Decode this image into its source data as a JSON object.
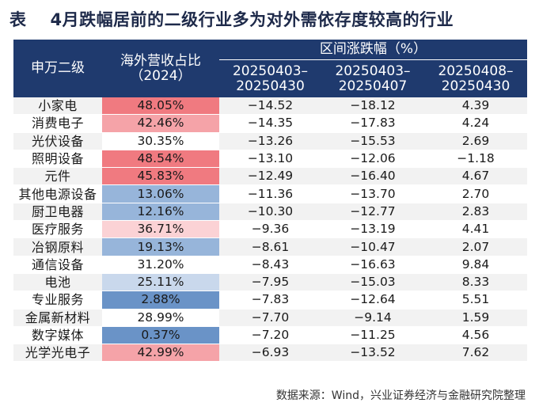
{
  "title": {
    "label": "表",
    "text": "4月跌幅居前的二级行业多为对外需依存度较高的行业"
  },
  "header": {
    "industry": "申万二级",
    "revenue_line1": "海外营收占比",
    "revenue_line2": "（2024）",
    "range_group": "区间涨跌幅（%）",
    "periods": [
      {
        "line1": "20250403–",
        "line2": "20250430"
      },
      {
        "line1": "20250403–",
        "line2": "20250407"
      },
      {
        "line1": "20250408–",
        "line2": "20250430"
      }
    ]
  },
  "rows": [
    {
      "industry": "小家电",
      "revenue": "48.05%",
      "p1": "−14.52",
      "p2": "−18.12",
      "p3": "4.39"
    },
    {
      "industry": "消费电子",
      "revenue": "42.46%",
      "p1": "−14.35",
      "p2": "−17.83",
      "p3": "4.24"
    },
    {
      "industry": "光伏设备",
      "revenue": "30.35%",
      "p1": "−13.26",
      "p2": "−15.53",
      "p3": "2.69"
    },
    {
      "industry": "照明设备",
      "revenue": "48.54%",
      "p1": "−13.10",
      "p2": "−12.06",
      "p3": "−1.18"
    },
    {
      "industry": "元件",
      "revenue": "45.83%",
      "p1": "−12.49",
      "p2": "−16.40",
      "p3": "4.67"
    },
    {
      "industry": "其他电源设备",
      "revenue": "13.06%",
      "p1": "−11.36",
      "p2": "−13.70",
      "p3": "2.70"
    },
    {
      "industry": "厨卫电器",
      "revenue": "12.16%",
      "p1": "−10.30",
      "p2": "−12.77",
      "p3": "2.83"
    },
    {
      "industry": "医疗服务",
      "revenue": "36.71%",
      "p1": "−9.36",
      "p2": "−13.19",
      "p3": "4.41"
    },
    {
      "industry": "冶钢原料",
      "revenue": "19.13%",
      "p1": "−8.61",
      "p2": "−10.47",
      "p3": "2.07"
    },
    {
      "industry": "通信设备",
      "revenue": "31.20%",
      "p1": "−8.43",
      "p2": "−16.63",
      "p3": "9.84"
    },
    {
      "industry": "电池",
      "revenue": "25.11%",
      "p1": "−7.95",
      "p2": "−15.03",
      "p3": "8.33"
    },
    {
      "industry": "专业服务",
      "revenue": "2.88%",
      "p1": "−7.83",
      "p2": "−12.64",
      "p3": "5.51"
    },
    {
      "industry": "金属新材料",
      "revenue": "28.99%",
      "p1": "−7.70",
      "p2": "−9.14",
      "p3": "1.59"
    },
    {
      "industry": "数字媒体",
      "revenue": "0.37%",
      "p1": "−7.20",
      "p2": "−11.25",
      "p3": "4.56"
    },
    {
      "industry": "光学光电子",
      "revenue": "42.99%",
      "p1": "−6.93",
      "p2": "−13.52",
      "p3": "7.62"
    }
  ],
  "heat_colors": {
    "red_strong": "#f07a80",
    "red_mid": "#f5a3a8",
    "red_light": "#fbd2d5",
    "neutral": "#ffffff",
    "blue_light": "#c9d8ec",
    "blue_mid": "#97b5da",
    "blue_strong": "#6a93c7"
  },
  "source": "数据来源：Wind，兴业证券经济与金融研究院整理"
}
